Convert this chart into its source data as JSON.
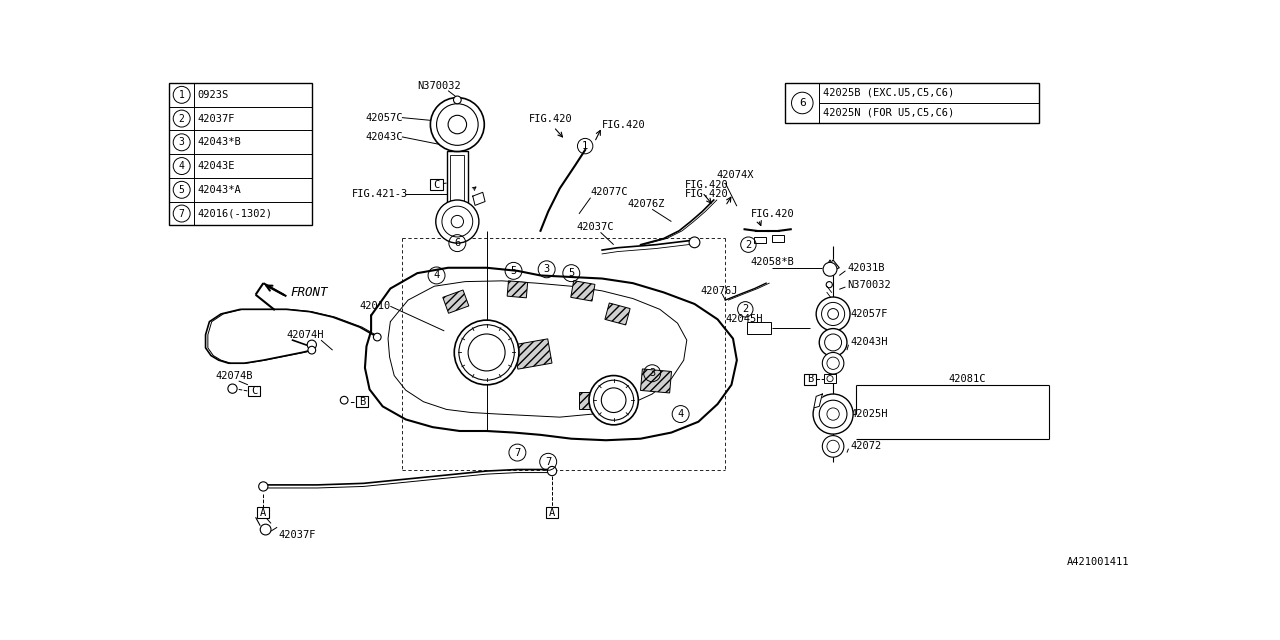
{
  "bg_color": "#ffffff",
  "line_color": "#000000",
  "diagram_id": "A421001411",
  "parts_list": [
    {
      "num": "1",
      "code": "0923S"
    },
    {
      "num": "2",
      "code": "42037F"
    },
    {
      "num": "3",
      "code": "42043*B"
    },
    {
      "num": "4",
      "code": "42043E"
    },
    {
      "num": "5",
      "code": "42043*A"
    },
    {
      "num": "7",
      "code": "42016(-1302)"
    }
  ],
  "part6_line1": "42025B (EXC.U5,C5,C6)",
  "part6_line2": "42025N (FOR U5,C5,C6)",
  "font_size": 7.5,
  "label_font": "monospace"
}
